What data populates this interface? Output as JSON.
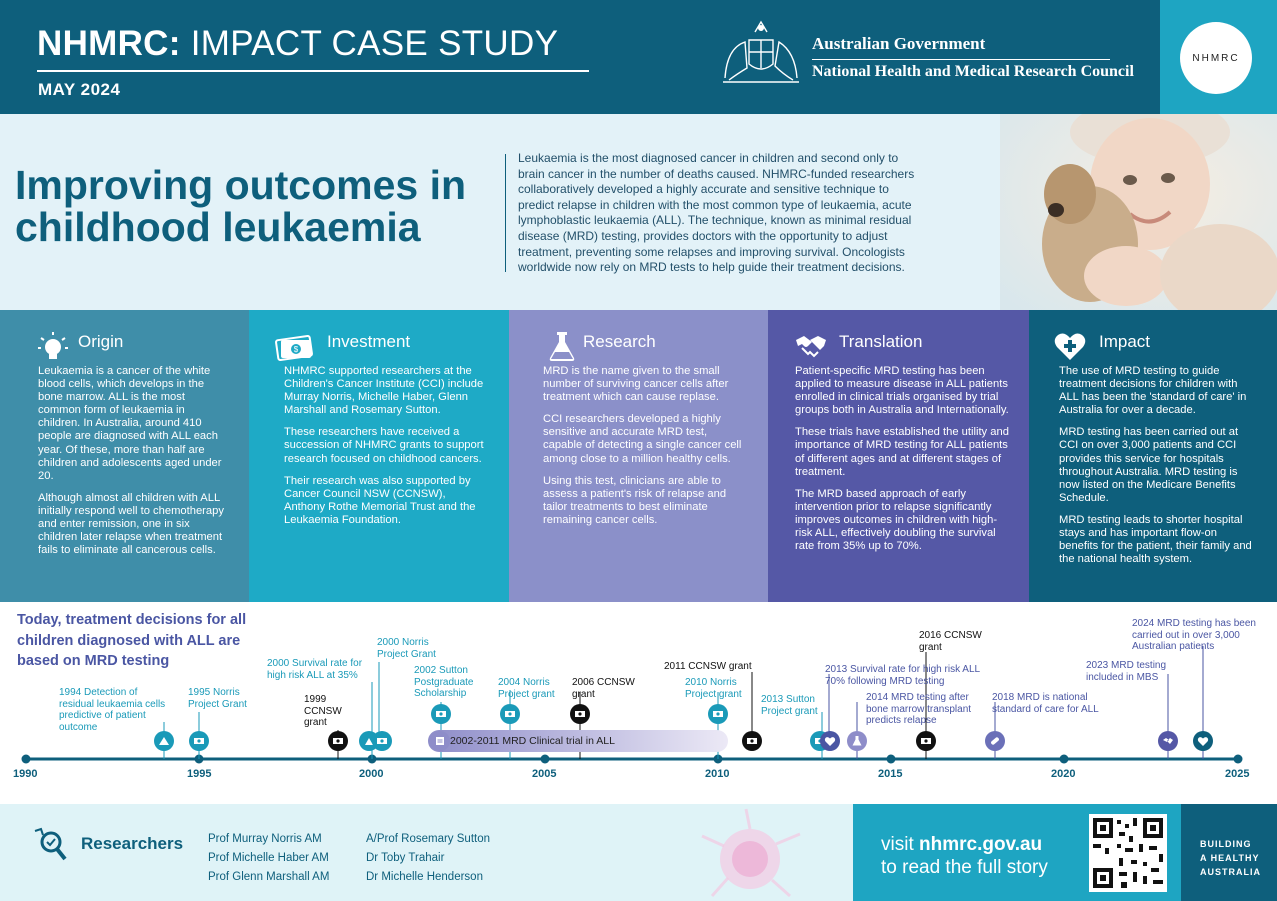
{
  "header": {
    "title_bold": "NHMRC:",
    "title_rest": " IMPACT CASE STUDY",
    "date": "MAY 2024",
    "gov_line1": "Australian Government",
    "gov_line2": "National Health and Medical Research Council",
    "logo_text": "NHMRC"
  },
  "hero": {
    "title_line1": "Improving outcomes in",
    "title_line2": "childhood leukaemia",
    "intro": "Leukaemia is the most diagnosed cancer in children and second only to brain cancer in the number of deaths caused. NHMRC-funded researchers collaboratively developed a highly accurate and sensitive technique to predict relapse in children with the most common type of leukaemia, acute lymphoblastic leukaemia (ALL). The technique, known as minimal residual disease (MRD) testing, provides doctors with the opportunity to adjust treatment, preventing some relapses and improving survival. Oncologists worldwide now rely on MRD tests to help guide their treatment decisions."
  },
  "columns": [
    {
      "heading": "Origin",
      "icon": "lightbulb-icon",
      "bg": "#3f8ea9",
      "paragraphs": [
        "Leukaemia is a cancer of the white blood cells, which develops in the bone marrow. ALL is the most common form of leukaemia in children. In Australia, around 410 people are diagnosed with ALL each year. Of these, more than half are children and adolescents aged under 20.",
        "Although almost all children with ALL initially respond well to chemotherapy and enter remission, one in six children later relapse when treatment fails to eliminate all cancerous cells."
      ]
    },
    {
      "heading": "Investment",
      "icon": "money-icon",
      "bg": "#1eaac6",
      "paragraphs": [
        "NHMRC supported researchers at the Children's Cancer Institute (CCI) include Murray Norris, Michelle Haber, Glenn Marshall and Rosemary Sutton.",
        "These researchers have received a succession of NHMRC grants to support research focused on childhood cancers.",
        "Their research was also supported by Cancer Council NSW (CCNSW), Anthony Rothe Memorial Trust and the Leukaemia Foundation."
      ]
    },
    {
      "heading": "Research",
      "icon": "flask-icon",
      "bg": "#8b90c9",
      "paragraphs": [
        "MRD is the name given to the small number of surviving cancer cells after treatment which can cause replase.",
        "CCI researchers developed a highly sensitive and accurate MRD test, capable of detecting a single cancer cell among close to a million healthy cells.",
        "Using this test, clinicians are able to assess a patient's risk of relapse and tailor treatments to best eliminate remaining cancer cells."
      ]
    },
    {
      "heading": "Translation",
      "icon": "handshake-icon",
      "bg": "#5558a6",
      "paragraphs": [
        "Patient-specific MRD testing has been applied to measure disease in ALL patients enrolled in clinical trials organised by trial groups both in Australia and Internationally.",
        "These trials have established the utility and importance of MRD testing for ALL patients of different ages and at different stages of treatment.",
        "The MRD based approach of early intervention prior to relapse significantly improves outcomes in children with high-risk ALL, effectively doubling the survival rate from 35% up to 70%."
      ]
    },
    {
      "heading": "Impact",
      "icon": "heart-plus-icon",
      "bg": "#0e5f7c",
      "paragraphs": [
        "The use of MRD testing to guide treatment decisions for children with ALL has been the 'standard of care' in Australia for over a decade.",
        "MRD testing has been carried out at CCI on over 3,000 patients and CCI provides this service for hospitals throughout Australia. MRD testing is now listed on the Medicare Benefits Schedule.",
        "MRD testing leads to shorter hospital stays and has important flow-on benefits for the patient, their family and the national health system."
      ]
    }
  ],
  "timeline": {
    "lead": "Today, treatment decisions for all children diagnosed with ALL are based on MRD testing",
    "years": [
      "1990",
      "1995",
      "2000",
      "2005",
      "2010",
      "2015",
      "2020",
      "2025"
    ],
    "trial_label": "2002-2011 MRD Clinical trial in ALL",
    "events": [
      {
        "text": "1994 Detection of\nresidual leukaemia cells\npredictive of patient\noutcome",
        "color": "teal",
        "year": 1994,
        "icon": "triangle-icon"
      },
      {
        "text": "1995 Norris\nProject Grant",
        "color": "teal",
        "year": 1995,
        "icon": "grant-icon"
      },
      {
        "text": "1999\nCCNSW\ngrant",
        "color": "dark",
        "year": 1999,
        "icon": "grant-icon"
      },
      {
        "text": "2000 Survival rate for\nhigh risk ALL at 35%",
        "color": "teal",
        "year": 2000,
        "icon": "survival-icon"
      },
      {
        "text": "2000 Norris\nProject Grant",
        "color": "teal",
        "year": 2000,
        "icon": "grant-icon"
      },
      {
        "text": "2002 Sutton\nPostgraduate\nScholarship",
        "color": "teal",
        "year": 2002,
        "icon": "grant-icon"
      },
      {
        "text": "2004 Norris\nProject grant",
        "color": "teal",
        "year": 2004,
        "icon": "grant-icon"
      },
      {
        "text": "2006 CCNSW\ngrant",
        "color": "dark",
        "year": 2006,
        "icon": "grant-icon"
      },
      {
        "text": "2010 Norris\nProject grant",
        "color": "teal",
        "year": 2010,
        "icon": "grant-icon"
      },
      {
        "text": "2011 CCNSW grant",
        "color": "dark",
        "year": 2011,
        "icon": "grant-icon"
      },
      {
        "text": "2013 Sutton\nProject grant",
        "color": "teal",
        "year": 2013,
        "icon": "grant-icon"
      },
      {
        "text": "2013 Survival rate for high risk ALL\n70% following MRD testing",
        "color": "purple",
        "year": 2013,
        "icon": "heart-plus-icon"
      },
      {
        "text": "2014 MRD testing after\nbone marrow transplant\npredicts relapse",
        "color": "purple",
        "year": 2014,
        "icon": "flask-icon"
      },
      {
        "text": "2016 CCNSW\ngrant",
        "color": "dark",
        "year": 2016,
        "icon": "grant-icon"
      },
      {
        "text": "2018 MRD is national\nstandard of care for ALL",
        "color": "purple",
        "year": 2018,
        "icon": "pill-icon"
      },
      {
        "text": "2023 MRD testing\nincluded in MBS",
        "color": "purple",
        "year": 2023,
        "icon": "handshake-icon"
      },
      {
        "text": "2024 MRD testing has been\ncarried out in over 3,000\nAustralian patients",
        "color": "purple",
        "year": 2024,
        "icon": "heart-plus-icon"
      }
    ]
  },
  "footer": {
    "researchers_title": "Researchers",
    "names_col1": [
      "Prof Murray Norris AM",
      "Prof Michelle Haber AM",
      "Prof Glenn Marshall AM"
    ],
    "names_col2": [
      "A/Prof Rosemary Sutton",
      "Dr Toby Trahair",
      "Dr Michelle Henderson"
    ],
    "visit_prefix": "visit ",
    "visit_url": "nhmrc.gov.au",
    "visit_line2": "to read the full story",
    "building": [
      "BUILDING",
      "A HEALTHY",
      "AUSTRALIA"
    ]
  }
}
